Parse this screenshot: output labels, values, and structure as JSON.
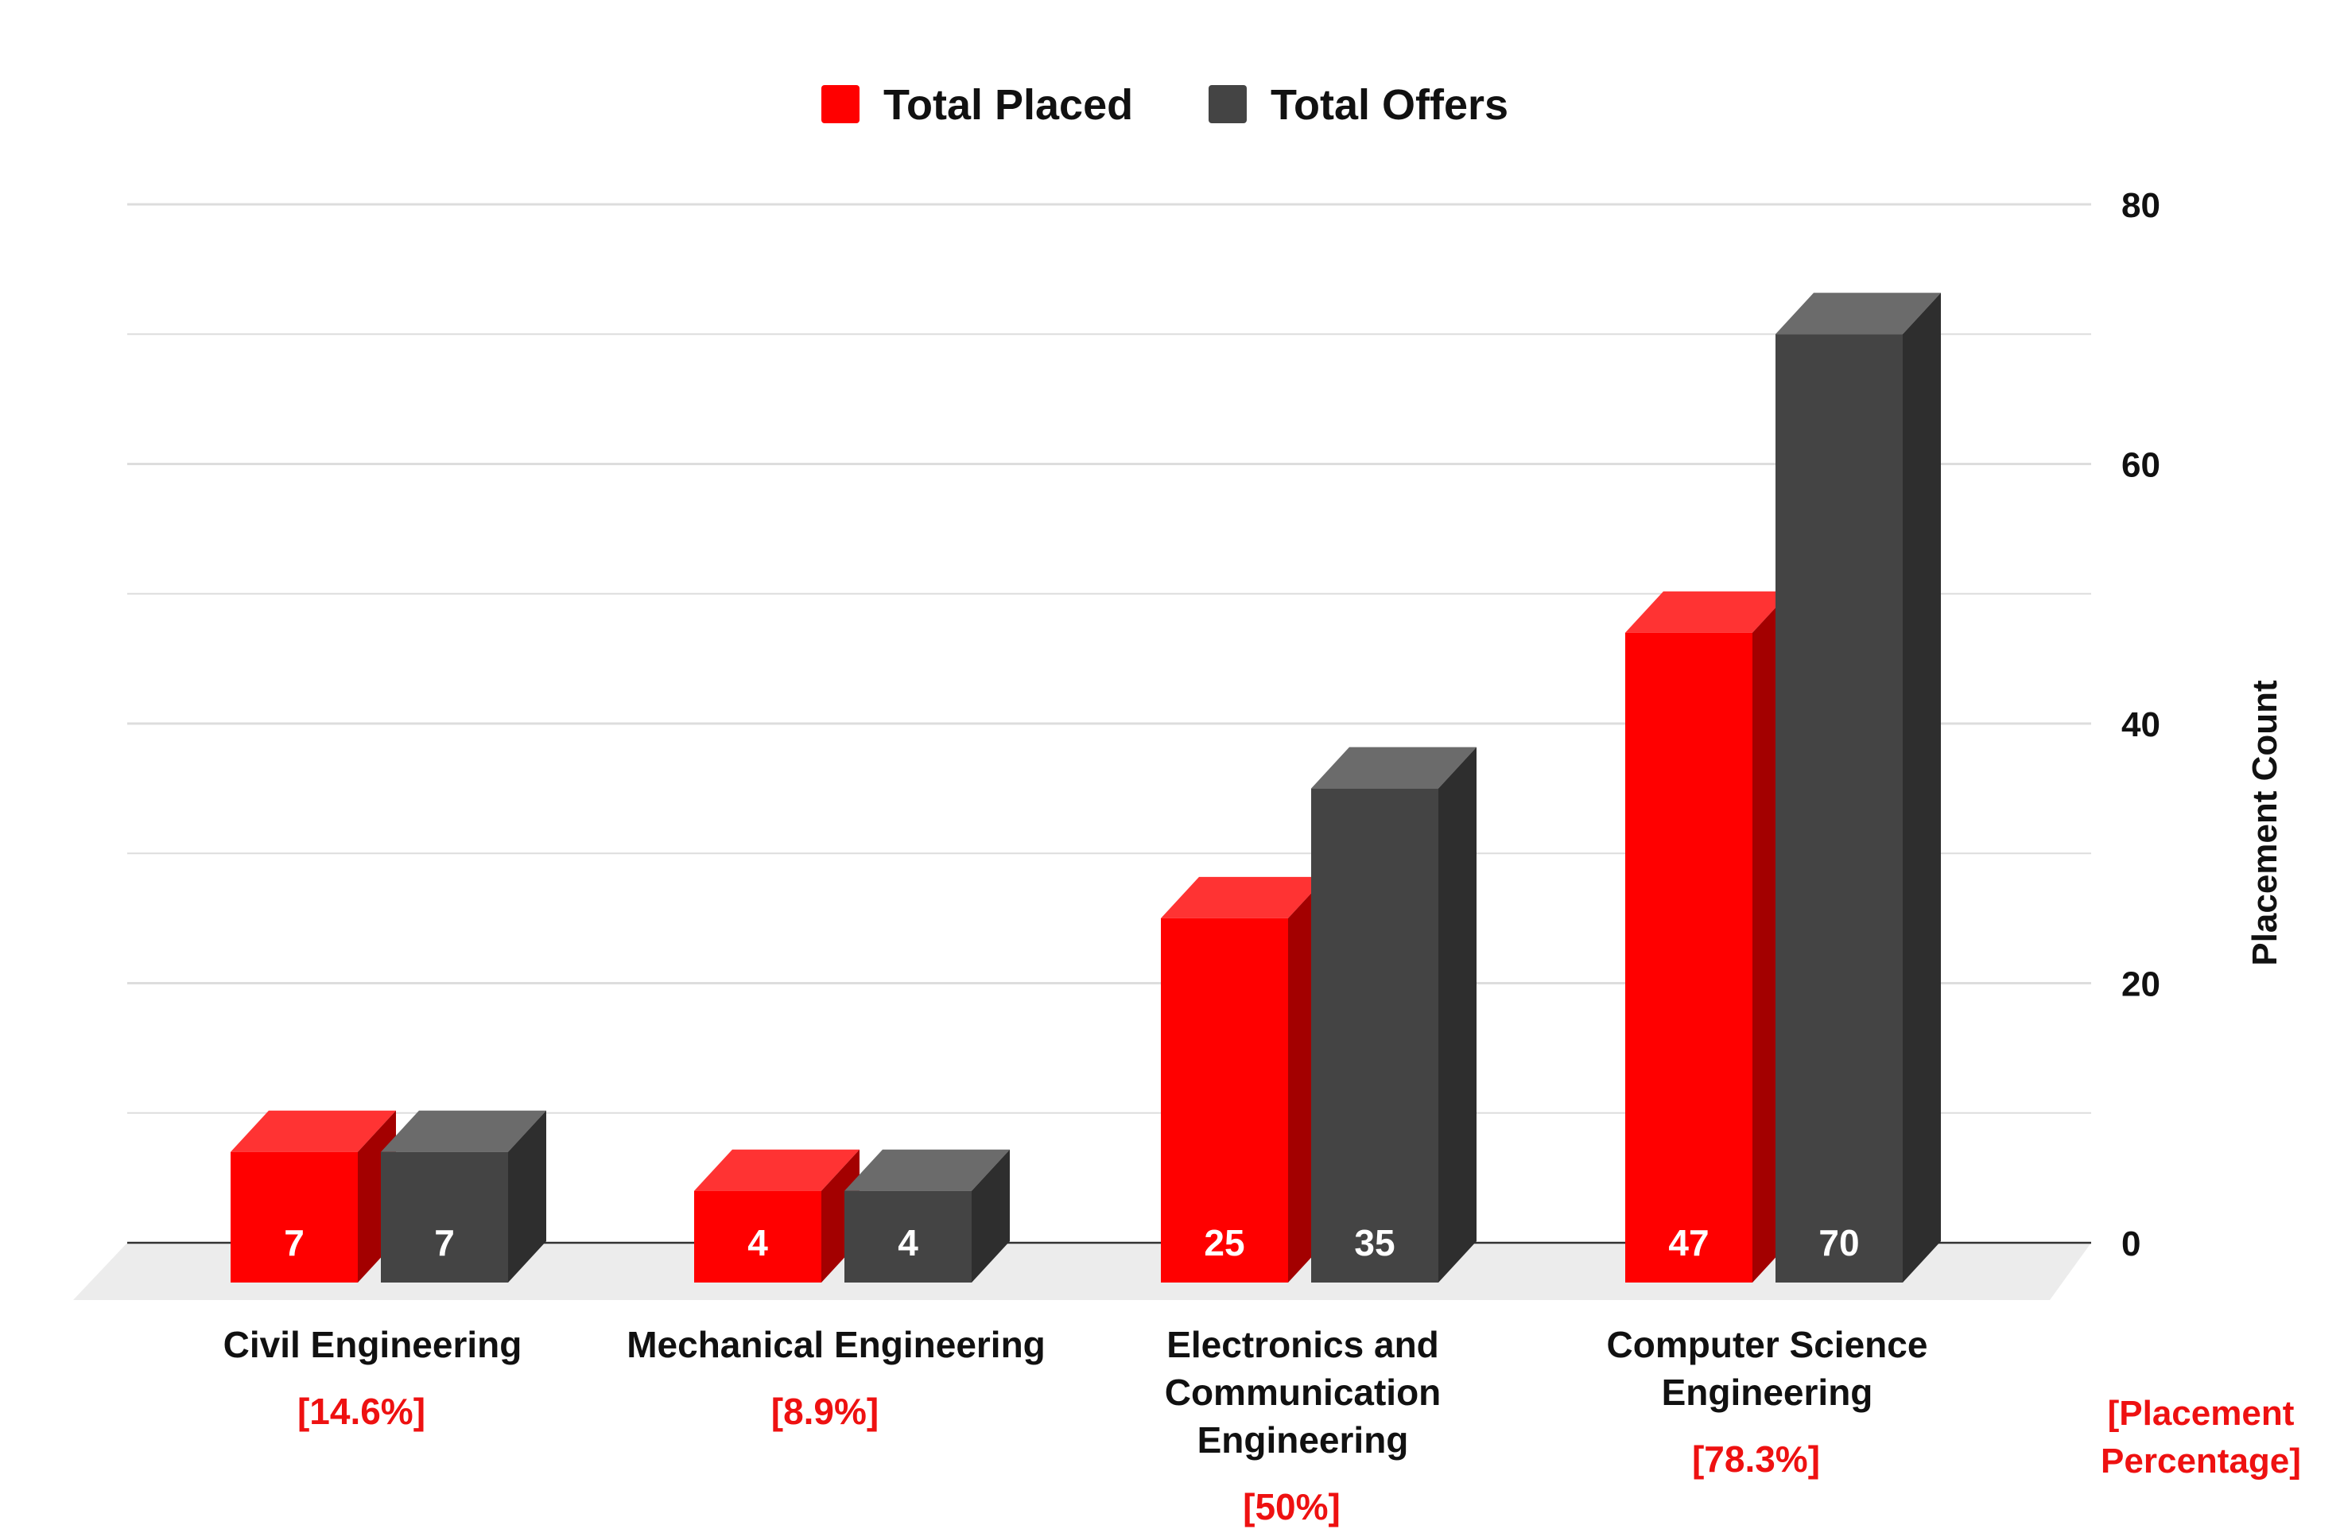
{
  "colors": {
    "placed_front": "#ff0000",
    "placed_top": "#ff3333",
    "placed_side": "#a30000",
    "offers_front": "#444444",
    "offers_top": "#6b6b6b",
    "offers_side": "#2e2e2e",
    "grid": "#dddddd",
    "floor": "#ececec",
    "percent_text": "#ee1111",
    "text": "#111111"
  },
  "chart_data": {
    "type": "bar",
    "style": "3d-clustered-column",
    "legend_position": "top-center",
    "grid": true,
    "categories": [
      [
        "Civil Engineering"
      ],
      [
        "Mechanical Engineering"
      ],
      [
        "Electronics and",
        "Communication",
        "Engineering"
      ],
      [
        "Computer Science",
        "Engineering"
      ]
    ],
    "percent_labels": [
      "[14.6%]",
      "[8.9%]",
      "[50%]",
      "[78.3%]"
    ],
    "percent_axis_label": [
      "[Placement",
      "Percentage]"
    ],
    "series": [
      {
        "name": "Total Placed",
        "values": [
          7,
          4,
          25,
          47
        ],
        "labels": [
          "7",
          "4",
          "25",
          "47"
        ]
      },
      {
        "name": "Total Offers",
        "values": [
          7,
          4,
          35,
          70
        ],
        "labels": [
          "7",
          "4",
          "35",
          "70"
        ]
      }
    ],
    "ylabel": "Placement Count",
    "y_axis_side": "right",
    "ylim": [
      0,
      80
    ],
    "yticks": [
      "0",
      "20",
      "40",
      "60",
      "80"
    ]
  }
}
